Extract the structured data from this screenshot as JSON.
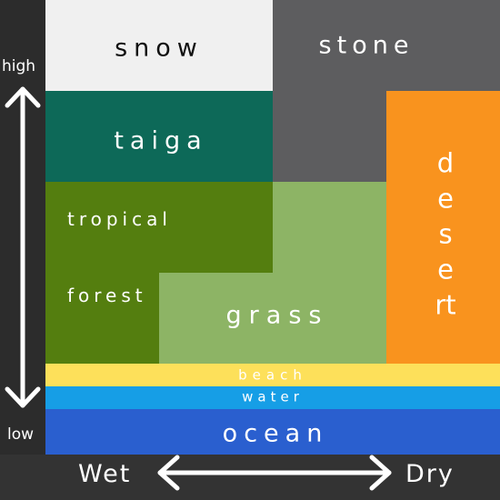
{
  "biomes": {
    "snow": {
      "label": "snow",
      "color": "#f0f0f0",
      "text_color": "#111111"
    },
    "stone": {
      "label": "stone",
      "color": "#5d5d5f",
      "text_color": "#ffffff"
    },
    "taiga": {
      "label": "taiga",
      "color": "#0d6958",
      "text_color": "#ffffff"
    },
    "tropical_forest": {
      "label_top": "tropical",
      "label_bottom": "forest",
      "color": "#547e0f",
      "text_color": "#ffffff"
    },
    "grass": {
      "label": "grass",
      "color": "#8db465",
      "text_color": "#ffffff"
    },
    "desert": {
      "label": "desert",
      "color": "#f9931e",
      "text_color": "#ffffff"
    },
    "beach": {
      "label": "beach",
      "color": "#fde05a",
      "text_color": "#ffffff"
    },
    "water": {
      "label": "water",
      "color": "#169ee6",
      "text_color": "#ffffff"
    },
    "ocean": {
      "label": "ocean",
      "color": "#2a5fcf",
      "text_color": "#ffffff"
    }
  },
  "axes": {
    "vertical": {
      "top_label": "high",
      "bottom_label": "low"
    },
    "horizontal": {
      "left_label": "Wet",
      "right_label": "Dry"
    }
  },
  "colors": {
    "background": "#373737",
    "arrow": "#ffffff"
  }
}
